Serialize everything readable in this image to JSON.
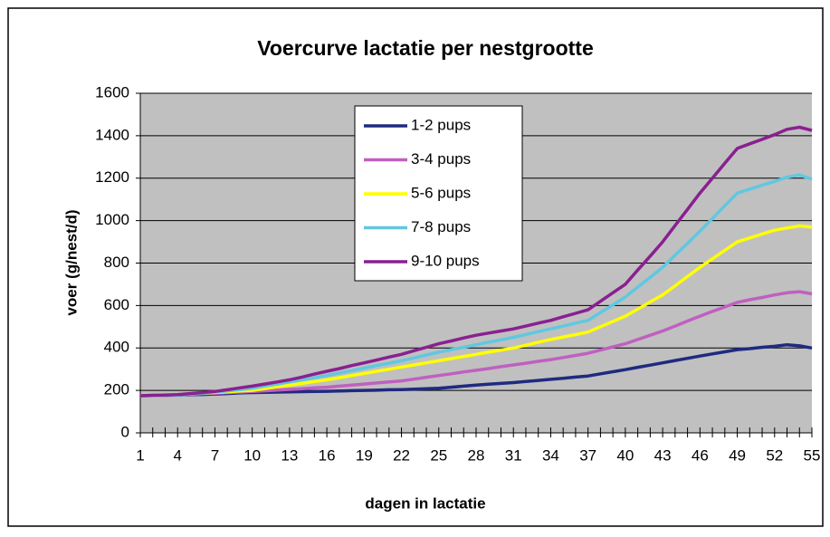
{
  "chart_data": {
    "type": "line",
    "title": "Voercurve lactatie per nestgrootte",
    "x_label": "dagen in lactatie",
    "y_label": "voer (g/nest/d)",
    "categories": [
      1,
      null,
      null,
      4,
      null,
      null,
      7,
      null,
      null,
      10,
      null,
      null,
      13,
      null,
      null,
      16,
      null,
      null,
      19,
      null,
      null,
      22,
      null,
      null,
      25,
      null,
      null,
      28,
      null,
      null,
      31,
      null,
      null,
      34,
      null,
      null,
      37,
      null,
      null,
      40,
      null,
      null,
      43,
      null,
      null,
      46,
      null,
      null,
      49,
      null,
      null,
      52,
      null,
      null,
      55
    ],
    "ylim": [
      0,
      1600
    ],
    "yticks": [
      0,
      200,
      400,
      600,
      800,
      1000,
      1200,
      1400,
      1600
    ],
    "grid": true,
    "series": [
      {
        "name": "1-2 pups",
        "color": "#1f2a80",
        "values": [
          175,
          176,
          177,
          178,
          180,
          181,
          183,
          185,
          188,
          190,
          191,
          192,
          193,
          194,
          195,
          196,
          197,
          199,
          200,
          201,
          203,
          204,
          206,
          208,
          210,
          215,
          220,
          225,
          229,
          233,
          237,
          242,
          247,
          252,
          257,
          263,
          268,
          278,
          288,
          298,
          309,
          319,
          330,
          341,
          351,
          362,
          372,
          382,
          392,
          397,
          403,
          408,
          415,
          410,
          400
        ]
      },
      {
        "name": "3-4 pups",
        "color": "#c060c0",
        "values": [
          175,
          177,
          178,
          180,
          182,
          185,
          187,
          190,
          192,
          195,
          198,
          202,
          205,
          208,
          212,
          215,
          220,
          225,
          230,
          235,
          240,
          245,
          253,
          262,
          270,
          278,
          287,
          295,
          303,
          312,
          320,
          328,
          337,
          345,
          355,
          365,
          375,
          390,
          405,
          420,
          440,
          460,
          480,
          503,
          527,
          550,
          572,
          593,
          615,
          627,
          638,
          650,
          660,
          665,
          655
        ]
      },
      {
        "name": "5-6 pups",
        "color": "#ffff00",
        "values": [
          175,
          177,
          178,
          180,
          183,
          187,
          190,
          193,
          197,
          200,
          208,
          217,
          225,
          233,
          242,
          250,
          260,
          270,
          280,
          290,
          300,
          310,
          320,
          330,
          340,
          350,
          360,
          370,
          380,
          390,
          400,
          413,
          427,
          440,
          452,
          463,
          475,
          500,
          525,
          550,
          583,
          617,
          650,
          693,
          737,
          780,
          820,
          860,
          900,
          918,
          937,
          955,
          965,
          975,
          970
        ]
      },
      {
        "name": "7-8 pups",
        "color": "#60c8e0",
        "values": [
          175,
          176,
          177,
          178,
          183,
          187,
          192,
          198,
          204,
          210,
          220,
          230,
          240,
          250,
          260,
          270,
          282,
          293,
          305,
          317,
          328,
          340,
          353,
          367,
          380,
          392,
          403,
          415,
          427,
          438,
          450,
          463,
          477,
          490,
          503,
          517,
          530,
          567,
          603,
          640,
          687,
          733,
          780,
          837,
          893,
          950,
          1010,
          1070,
          1130,
          1148,
          1167,
          1185,
          1205,
          1215,
          1195
        ]
      },
      {
        "name": "9-10 pups",
        "color": "#8a2090",
        "values": [
          175,
          177,
          178,
          180,
          185,
          190,
          195,
          203,
          212,
          220,
          230,
          240,
          250,
          263,
          277,
          290,
          303,
          317,
          330,
          343,
          357,
          370,
          387,
          403,
          420,
          433,
          447,
          460,
          470,
          480,
          490,
          503,
          517,
          530,
          547,
          563,
          580,
          620,
          660,
          700,
          767,
          833,
          900,
          977,
          1053,
          1130,
          1200,
          1270,
          1340,
          1362,
          1383,
          1405,
          1430,
          1440,
          1425
        ]
      }
    ]
  }
}
